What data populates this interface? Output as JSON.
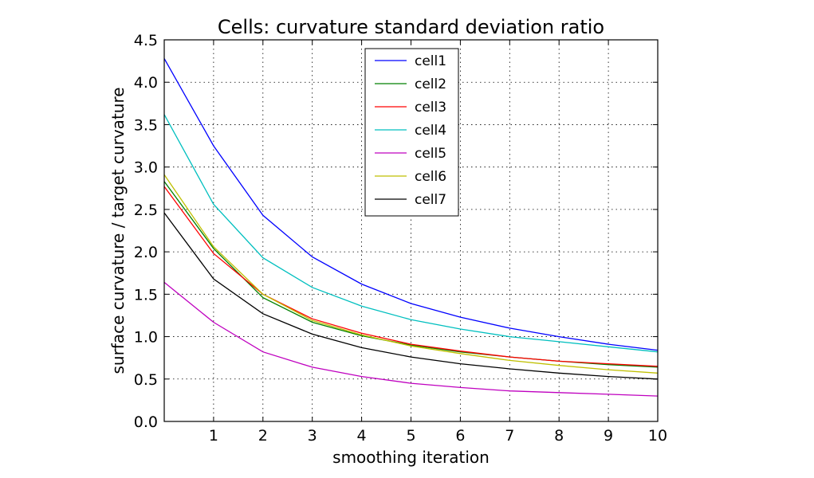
{
  "chart_data": {
    "type": "line",
    "title": "Cells: curvature standard deviation ratio",
    "xlabel": "smoothing iteration",
    "ylabel": "surface curvature / target curvature",
    "xlim": [
      0,
      10
    ],
    "ylim": [
      0,
      4.5
    ],
    "xticks": [
      1,
      2,
      3,
      4,
      5,
      6,
      7,
      8,
      9,
      10
    ],
    "xtick_labels": [
      "1",
      "2",
      "3",
      "4",
      "5",
      "6",
      "7",
      "8",
      "9",
      "10"
    ],
    "yticks": [
      0,
      0.5,
      1,
      1.5,
      2,
      2.5,
      3,
      3.5,
      4,
      4.5
    ],
    "ytick_labels": [
      "0.0",
      "0.5",
      "1.0",
      "1.5",
      "2.0",
      "2.5",
      "3.0",
      "3.5",
      "4.0",
      "4.5"
    ],
    "grid": true,
    "legend_position": "top-center",
    "x": [
      0,
      1,
      2,
      3,
      4,
      5,
      6,
      7,
      8,
      9,
      10
    ],
    "series": [
      {
        "name": "cell1",
        "color": "#0000ff",
        "values": [
          4.28,
          3.25,
          2.43,
          1.94,
          1.62,
          1.39,
          1.23,
          1.1,
          1.0,
          0.91,
          0.84
        ]
      },
      {
        "name": "cell2",
        "color": "#008000",
        "values": [
          2.83,
          2.04,
          1.46,
          1.17,
          1.01,
          0.9,
          0.82,
          0.76,
          0.71,
          0.67,
          0.64
        ]
      },
      {
        "name": "cell3",
        "color": "#ff0000",
        "values": [
          2.77,
          1.98,
          1.5,
          1.21,
          1.04,
          0.91,
          0.83,
          0.76,
          0.71,
          0.68,
          0.65
        ]
      },
      {
        "name": "cell4",
        "color": "#00bfbf",
        "values": [
          3.62,
          2.56,
          1.93,
          1.58,
          1.36,
          1.2,
          1.09,
          1.0,
          0.94,
          0.88,
          0.82
        ]
      },
      {
        "name": "cell5",
        "color": "#bf00bf",
        "values": [
          1.64,
          1.17,
          0.82,
          0.64,
          0.53,
          0.45,
          0.4,
          0.36,
          0.34,
          0.32,
          0.3
        ]
      },
      {
        "name": "cell6",
        "color": "#bfbf00",
        "values": [
          2.91,
          2.06,
          1.5,
          1.19,
          1.02,
          0.89,
          0.8,
          0.72,
          0.66,
          0.61,
          0.57
        ]
      },
      {
        "name": "cell7",
        "color": "#000000",
        "values": [
          2.46,
          1.68,
          1.27,
          1.03,
          0.87,
          0.76,
          0.68,
          0.62,
          0.57,
          0.53,
          0.5
        ]
      }
    ]
  }
}
